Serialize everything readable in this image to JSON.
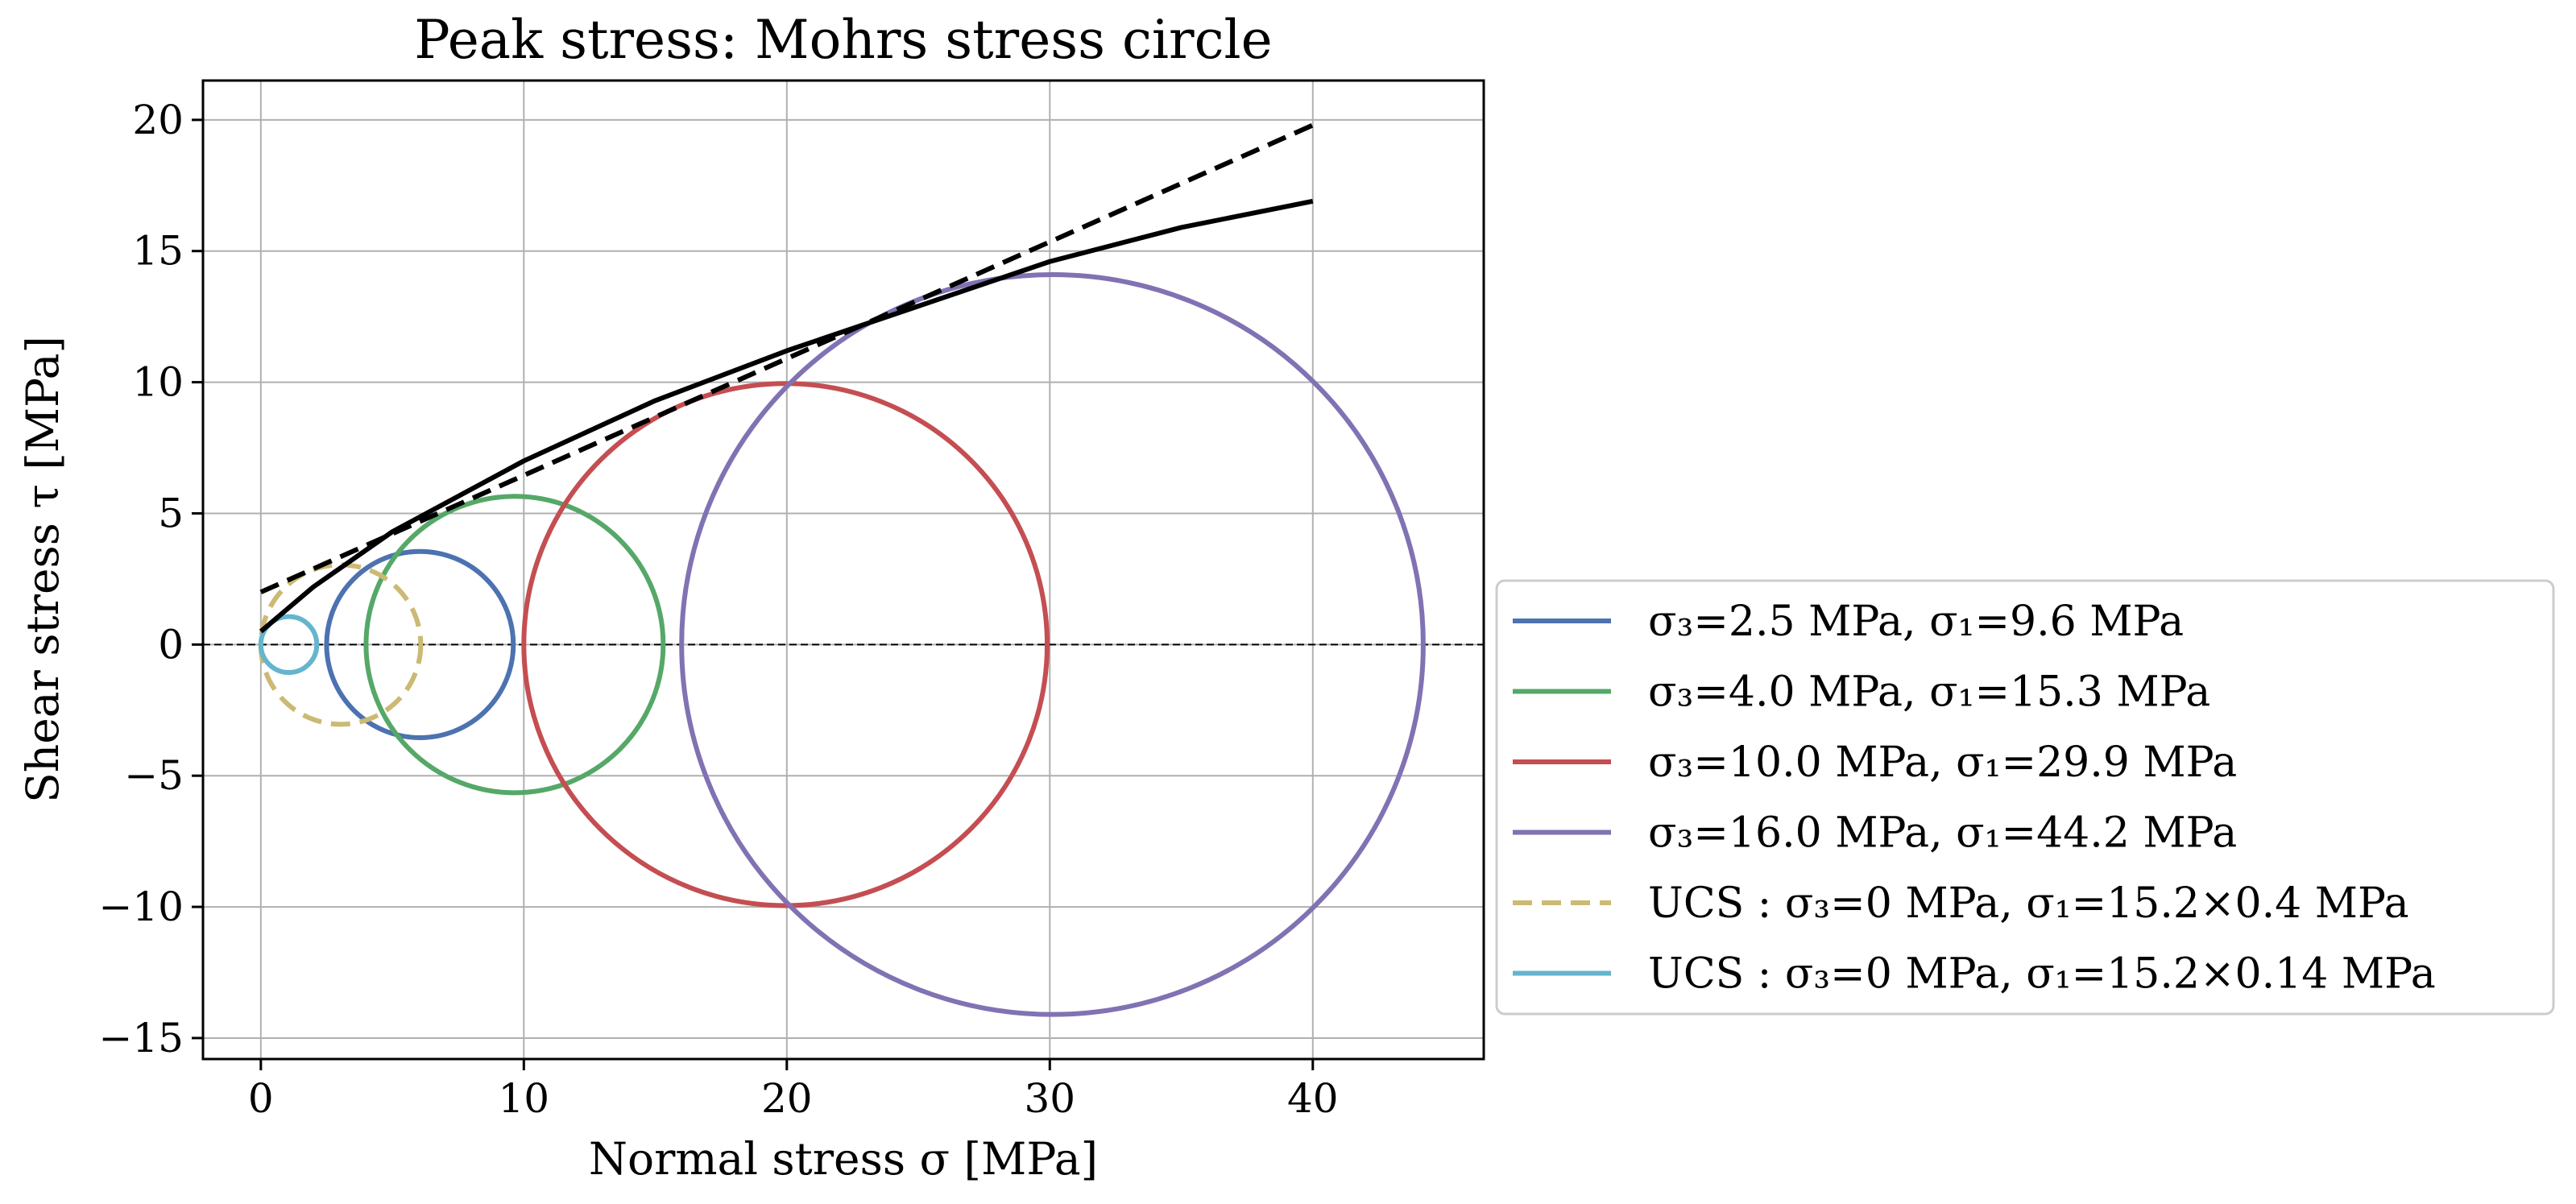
{
  "chart_data": {
    "type": "line",
    "title": "Peak stress: Mohrs stress circle",
    "xlabel": "Normal stress σ [MPa]",
    "ylabel": "Shear stress τ [MPa]",
    "xlim": [
      -2.2,
      46.5
    ],
    "ylim": [
      -15.8,
      21.5
    ],
    "xticks": [
      0,
      10,
      20,
      30,
      40
    ],
    "yticks": [
      -15,
      -10,
      -5,
      0,
      5,
      10,
      15,
      20
    ],
    "xtick_labels": [
      "0",
      "10",
      "20",
      "30",
      "40"
    ],
    "ytick_labels": [
      "−15",
      "−10",
      "−5",
      "0",
      "5",
      "10",
      "15",
      "20"
    ],
    "grid": true,
    "legend_position": "outside-right",
    "series": [
      {
        "name": "σ₃=2.5 MPa, σ₁=9.6 MPa",
        "kind": "circle",
        "center": 6.05,
        "radius": 3.55,
        "color": "#4c72b0",
        "dash": false
      },
      {
        "name": "σ₃=4.0 MPa, σ₁=15.3 MPa",
        "kind": "circle",
        "center": 9.65,
        "radius": 5.65,
        "color": "#55a868",
        "dash": false
      },
      {
        "name": "σ₃=10.0 MPa, σ₁=29.9 MPa",
        "kind": "circle",
        "center": 19.95,
        "radius": 9.95,
        "color": "#c44e52",
        "dash": false
      },
      {
        "name": "σ₃=16.0 MPa, σ₁=44.2 MPa",
        "kind": "circle",
        "center": 30.1,
        "radius": 14.1,
        "color": "#8172b3",
        "dash": false
      },
      {
        "name": "UCS : σ₃=0 MPa, σ₁=15.2×0.4 MPa",
        "kind": "circle",
        "center": 3.04,
        "radius": 3.04,
        "color": "#ccb974",
        "dash": true
      },
      {
        "name": "UCS : σ₃=0 MPa, σ₁=15.2×0.14 MPa",
        "kind": "circle",
        "center": 1.064,
        "radius": 1.064,
        "color": "#64b5cd",
        "dash": false
      }
    ],
    "envelopes": [
      {
        "kind": "linear",
        "color": "#000000",
        "dash": true,
        "x": [
          0,
          40
        ],
        "y": [
          2.0,
          19.8
        ]
      },
      {
        "kind": "curve",
        "color": "#000000",
        "dash": false,
        "x": [
          0,
          2,
          5,
          10,
          15,
          20,
          25,
          30,
          35,
          40
        ],
        "y": [
          0.5,
          2.2,
          4.3,
          7.0,
          9.3,
          11.2,
          12.9,
          14.6,
          15.9,
          16.9
        ]
      },
      {
        "kind": "zero-line",
        "color": "#000000",
        "dash": true,
        "x": [
          -2.2,
          46.5
        ],
        "y": [
          0,
          0
        ]
      }
    ]
  }
}
